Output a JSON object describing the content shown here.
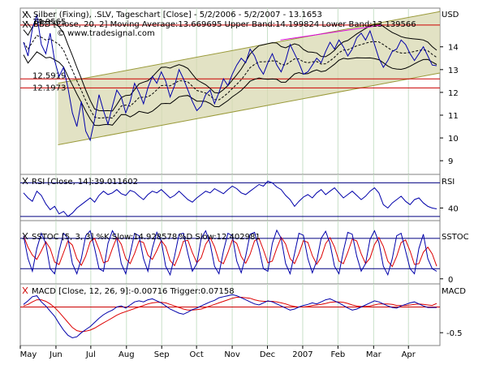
{
  "chart_data": {
    "type": "line",
    "x_months": [
      "May",
      "Jun",
      "Jul",
      "Aug",
      "Sep",
      "Oct",
      "Nov",
      "Dec",
      "2007",
      "Feb",
      "Mar",
      "Apr"
    ],
    "currency_label": "USD",
    "panels": {
      "price": {
        "title": "Silber (Fixing), .SLV, Tageschart [Close] - 5/2/2006 - 5/2/2007 - 13.1653",
        "bbd_label": "BBD [Close, 20, 2] Moving Average:13.669695 Upper Band:14.199824 Lower Band:13.139566",
        "watermark": "© www.tradesignal.com",
        "yticks": [
          9,
          10,
          11,
          12,
          13,
          14
        ],
        "ylim": [
          8.4,
          15.7
        ],
        "hlines": [
          {
            "label": "14.9565",
            "value": 14.9565,
            "color": "#cc0000"
          },
          {
            "label": "12.5919",
            "value": 12.5919,
            "color": "#cc0000"
          },
          {
            "label": "12.1973",
            "value": 12.1973,
            "color": "#cc0000"
          }
        ],
        "channel_upper": [
          [
            0.09,
            12.4
          ],
          [
            1.0,
            15.55
          ]
        ],
        "channel_lower": [
          [
            0.09,
            9.7
          ],
          [
            1.0,
            12.85
          ]
        ],
        "resistance_line": [
          [
            0.62,
            14.3
          ],
          [
            0.86,
            14.95
          ]
        ],
        "price_series": [
          14.2,
          13.6,
          14.8,
          15.4,
          14.1,
          13.7,
          14.6,
          13.4,
          12.7,
          13.1,
          12.2,
          11.1,
          10.5,
          11.6,
          10.3,
          9.9,
          10.8,
          11.9,
          11.2,
          10.6,
          11.4,
          12.1,
          11.8,
          11.1,
          11.6,
          12.4,
          12.0,
          11.5,
          12.2,
          12.7,
          12.4,
          12.9,
          12.5,
          11.8,
          12.3,
          13.0,
          12.6,
          12.1,
          11.6,
          11.2,
          11.4,
          11.9,
          12.1,
          11.5,
          12.0,
          12.6,
          12.3,
          12.8,
          13.2,
          13.5,
          13.3,
          13.9,
          13.6,
          13.1,
          12.8,
          13.3,
          13.7,
          13.2,
          12.9,
          13.4,
          14.1,
          13.7,
          13.3,
          12.8,
          12.9,
          13.2,
          13.5,
          13.3,
          13.8,
          14.2,
          13.9,
          14.3,
          14.0,
          13.6,
          13.9,
          14.4,
          14.6,
          14.3,
          14.7,
          14.1,
          13.5,
          13.1,
          13.4,
          13.8,
          13.9,
          14.3,
          14.1,
          13.7,
          13.4,
          13.7,
          14.0,
          13.6,
          13.2,
          13.17
        ]
      },
      "rsi": {
        "label": "RSI [Close, 14]:39.011602",
        "name": "RSI",
        "yticks": [
          40
        ],
        "ylim": [
          25,
          80
        ],
        "hlines": [
          30,
          70
        ],
        "series": [
          58,
          52,
          48,
          60,
          55,
          45,
          38,
          42,
          33,
          36,
          30,
          34,
          40,
          44,
          48,
          52,
          47,
          55,
          60,
          56,
          58,
          62,
          57,
          55,
          61,
          59,
          54,
          50,
          56,
          60,
          58,
          62,
          57,
          52,
          55,
          60,
          55,
          50,
          47,
          52,
          56,
          60,
          58,
          63,
          60,
          57,
          62,
          66,
          63,
          58,
          56,
          60,
          64,
          68,
          66,
          72,
          70,
          65,
          62,
          55,
          50,
          42,
          48,
          53,
          56,
          52,
          58,
          62,
          56,
          60,
          64,
          58,
          52,
          56,
          60,
          55,
          50,
          54,
          60,
          64,
          58,
          44,
          40,
          46,
          50,
          54,
          48,
          44,
          50,
          52,
          46,
          42,
          40,
          39
        ]
      },
      "sstoc": {
        "label_k": "SSTOC [5, 3, 3] %K Slow:14.928578",
        "label_d": "%D Slow:12.402981",
        "name": "SSTOC",
        "yticks": [
          0
        ],
        "ylim": [
          -10,
          115
        ],
        "hlines": [
          20,
          80
        ],
        "k_series": [
          85,
          40,
          15,
          60,
          90,
          70,
          20,
          10,
          55,
          90,
          80,
          30,
          10,
          40,
          85,
          95,
          60,
          20,
          15,
          70,
          95,
          80,
          30,
          10,
          50,
          90,
          85,
          40,
          15,
          60,
          92,
          75,
          25,
          8,
          45,
          88,
          90,
          50,
          15,
          30,
          80,
          95,
          70,
          25,
          10,
          55,
          90,
          85,
          35,
          12,
          45,
          88,
          92,
          60,
          20,
          15,
          70,
          96,
          80,
          30,
          10,
          50,
          90,
          86,
          40,
          12,
          35,
          80,
          94,
          70,
          25,
          10,
          55,
          92,
          88,
          45,
          15,
          30,
          78,
          95,
          72,
          25,
          8,
          40,
          85,
          90,
          55,
          20,
          10,
          60,
          88,
          40,
          20,
          15
        ]
      },
      "macd": {
        "label": "MACD [Close, 12, 26, 9]:-0.00716 Trigger:0.07158",
        "name": "MACD",
        "yticks": [
          -0.5
        ],
        "ylim": [
          -0.75,
          0.45
        ],
        "hlines": [
          0
        ],
        "macd_series": [
          0.05,
          0.12,
          0.2,
          0.22,
          0.1,
          0.02,
          -0.08,
          -0.18,
          -0.32,
          -0.45,
          -0.55,
          -0.6,
          -0.58,
          -0.5,
          -0.44,
          -0.38,
          -0.3,
          -0.22,
          -0.15,
          -0.1,
          -0.06,
          0.0,
          0.02,
          -0.02,
          0.04,
          0.1,
          0.12,
          0.1,
          0.14,
          0.16,
          0.12,
          0.08,
          0.02,
          -0.04,
          -0.08,
          -0.12,
          -0.14,
          -0.1,
          -0.05,
          -0.02,
          0.02,
          0.06,
          0.1,
          0.13,
          0.18,
          0.2,
          0.22,
          0.24,
          0.22,
          0.18,
          0.14,
          0.1,
          0.06,
          0.04,
          0.08,
          0.12,
          0.1,
          0.06,
          0.02,
          -0.02,
          -0.06,
          -0.04,
          0.0,
          0.03,
          0.05,
          0.08,
          0.06,
          0.1,
          0.14,
          0.16,
          0.12,
          0.08,
          0.03,
          -0.02,
          -0.06,
          -0.04,
          0.0,
          0.04,
          0.08,
          0.12,
          0.1,
          0.06,
          0.02,
          -0.01,
          -0.02,
          0.02,
          0.05,
          0.08,
          0.1,
          0.06,
          0.02,
          -0.01,
          -0.01,
          -0.01
        ],
        "trigger_series": [
          0.02,
          0.05,
          0.1,
          0.14,
          0.14,
          0.11,
          0.06,
          -0.01,
          -0.1,
          -0.2,
          -0.3,
          -0.4,
          -0.46,
          -0.48,
          -0.47,
          -0.45,
          -0.41,
          -0.36,
          -0.31,
          -0.26,
          -0.21,
          -0.16,
          -0.12,
          -0.09,
          -0.06,
          -0.03,
          0.0,
          0.03,
          0.06,
          0.08,
          0.09,
          0.09,
          0.08,
          0.05,
          0.02,
          -0.01,
          -0.04,
          -0.06,
          -0.06,
          -0.05,
          -0.04,
          -0.01,
          0.02,
          0.05,
          0.08,
          0.11,
          0.14,
          0.17,
          0.19,
          0.19,
          0.18,
          0.17,
          0.14,
          0.12,
          0.11,
          0.11,
          0.11,
          0.1,
          0.08,
          0.06,
          0.03,
          0.01,
          0.0,
          0.0,
          0.01,
          0.03,
          0.04,
          0.05,
          0.07,
          0.09,
          0.1,
          0.1,
          0.09,
          0.07,
          0.04,
          0.02,
          0.01,
          0.01,
          0.02,
          0.04,
          0.06,
          0.06,
          0.06,
          0.05,
          0.03,
          0.03,
          0.03,
          0.04,
          0.05,
          0.06,
          0.05,
          0.04,
          0.03,
          0.07
        ]
      }
    }
  }
}
